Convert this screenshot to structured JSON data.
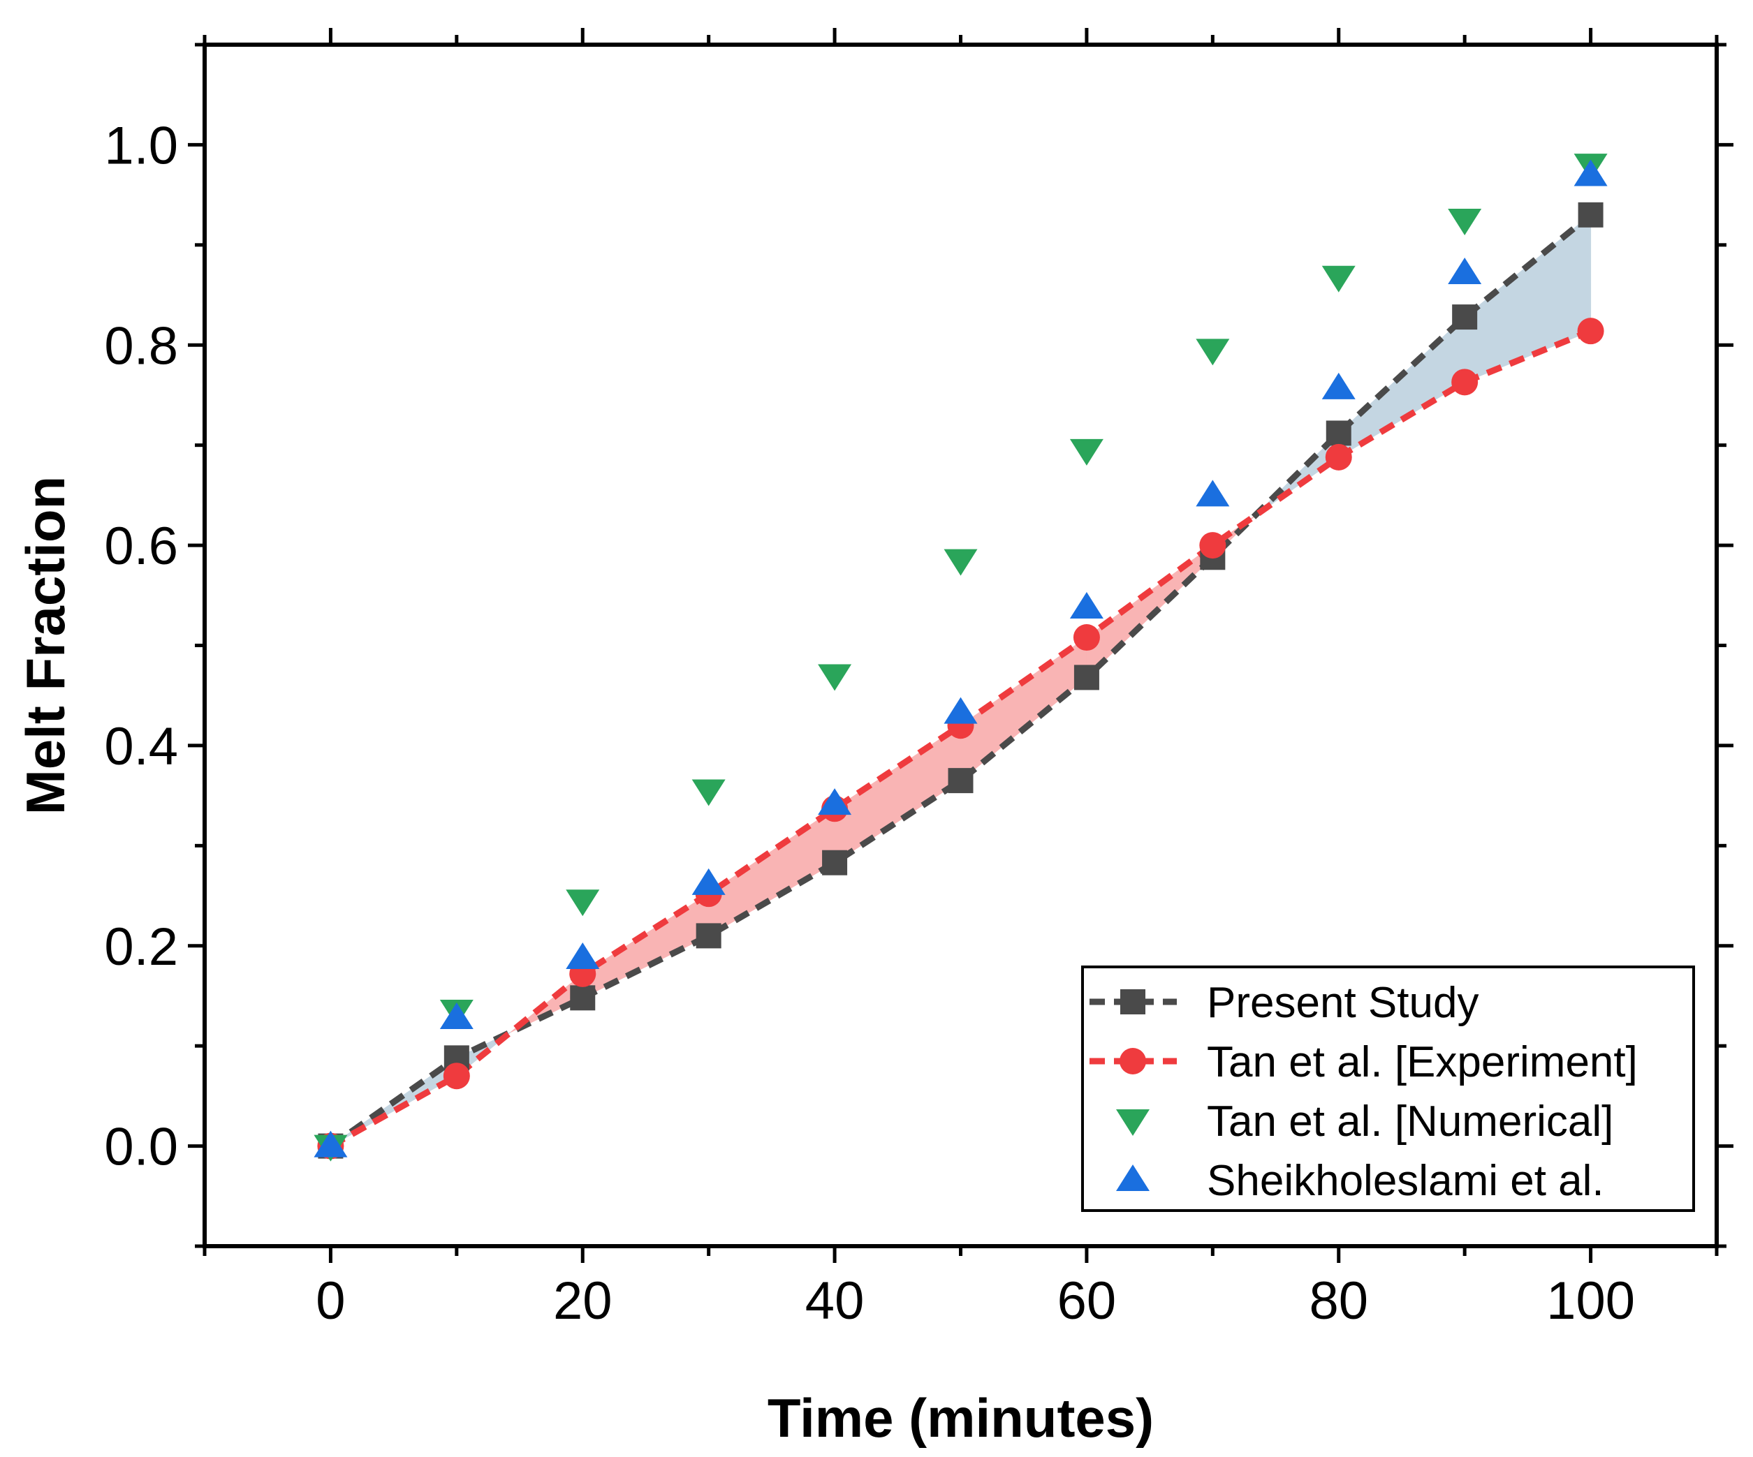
{
  "chart_data": {
    "type": "line",
    "title": "",
    "xlabel": "Time (minutes)",
    "ylabel": "Melt Fraction",
    "xlim": [
      -10,
      110
    ],
    "ylim": [
      -0.1,
      1.1
    ],
    "xticks": [
      0,
      20,
      40,
      60,
      80,
      100
    ],
    "yticks": [
      0.0,
      0.2,
      0.4,
      0.6,
      0.8,
      1.0
    ],
    "xtick_labels": [
      "0",
      "20",
      "40",
      "60",
      "80",
      "100"
    ],
    "ytick_labels": [
      "0.0",
      "0.2",
      "0.4",
      "0.6",
      "0.8",
      "1.0"
    ],
    "grid": false,
    "legend_position": "bottom-right",
    "x": [
      0,
      10,
      20,
      30,
      40,
      50,
      60,
      70,
      80,
      90,
      100
    ],
    "series": [
      {
        "name": "Present Study",
        "color": "#4a4a4a",
        "marker": "square",
        "line": "dashed",
        "values": [
          0.0,
          0.088,
          0.148,
          0.21,
          0.283,
          0.365,
          0.468,
          0.588,
          0.712,
          0.828,
          0.93
        ]
      },
      {
        "name": "Tan et al. [Experiment]",
        "color": "#ef3b3e",
        "marker": "circle",
        "line": "dashed",
        "values": [
          0.0,
          0.07,
          0.172,
          0.252,
          0.337,
          0.42,
          0.508,
          0.6,
          0.688,
          0.763,
          0.814
        ]
      },
      {
        "name": "Tan et al. [Numerical]",
        "color": "#2aa55a",
        "marker": "triangle-down",
        "line": "none",
        "values": [
          0.0,
          0.135,
          0.245,
          0.355,
          0.47,
          0.585,
          0.695,
          0.795,
          0.868,
          0.925,
          0.98
        ]
      },
      {
        "name": "Sheikholeslami et al.",
        "color": "#1a6fdf",
        "marker": "triangle-up",
        "line": "none",
        "values": [
          0.0,
          0.128,
          0.188,
          0.262,
          0.342,
          0.433,
          0.538,
          0.65,
          0.757,
          0.872,
          0.97
        ]
      }
    ],
    "fill_between": {
      "series_a": "Present Study",
      "series_b": "Tan et al. [Experiment]",
      "color_when_b_above": "#f9b4b4",
      "color_when_a_above": "#c4d6e2"
    }
  }
}
